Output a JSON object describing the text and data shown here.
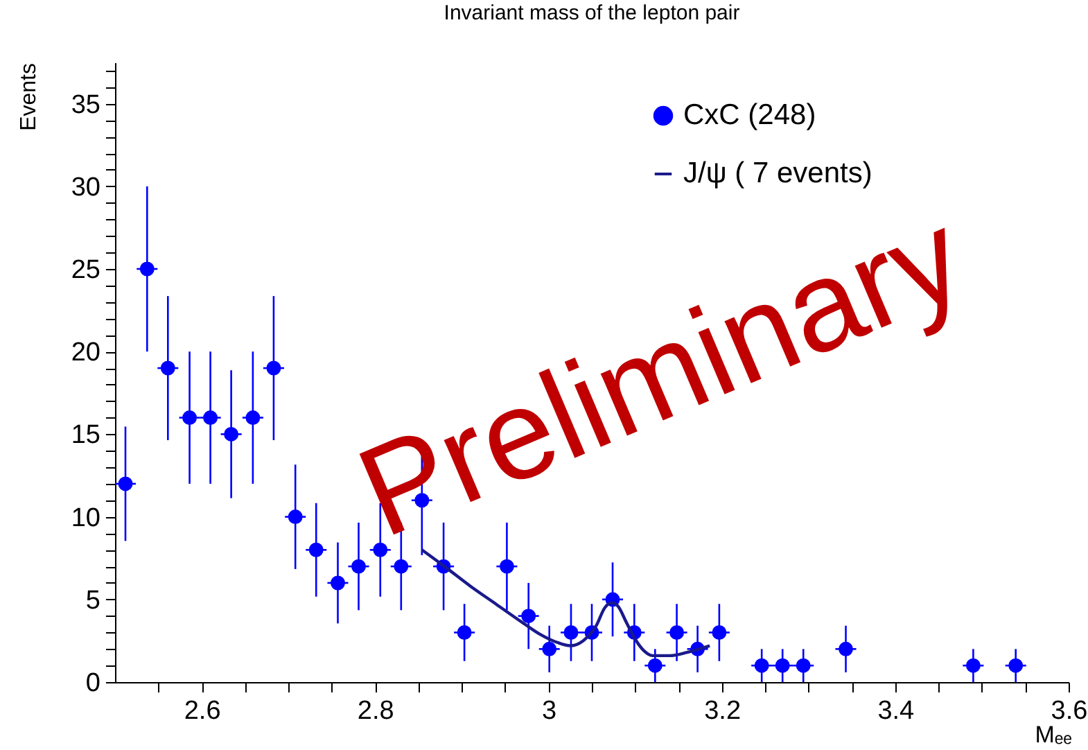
{
  "chart_data": {
    "type": "scatter",
    "title": "Invariant mass of the lepton pair",
    "xlabel": "Mₑₑ",
    "ylabel": "Events",
    "xlim": [
      2.5,
      3.6
    ],
    "xticks": [
      {
        "value": 2.55,
        "label": null
      },
      2.6,
      {
        "value": 2.65,
        "label": null
      },
      {
        "value": 2.7,
        "label": null
      },
      {
        "value": 2.75,
        "label": null
      },
      2.8,
      {
        "value": 2.85,
        "label": null
      },
      {
        "value": 2.9,
        "label": null
      },
      {
        "value": 2.95,
        "label": null
      },
      3,
      {
        "value": 3.05,
        "label": null
      },
      {
        "value": 3.1,
        "label": null
      },
      {
        "value": 3.15,
        "label": null
      },
      3.2,
      {
        "value": 3.25,
        "label": null
      },
      {
        "value": 3.3,
        "label": null
      },
      {
        "value": 3.35,
        "label": null
      },
      3.4,
      {
        "value": 3.45,
        "label": null
      },
      {
        "value": 3.5,
        "label": null
      },
      {
        "value": 3.55,
        "label": null
      },
      3.6
    ],
    "ylim": [
      0,
      37.5
    ],
    "yticks": [
      0,
      {
        "value": 1,
        "label": null
      },
      {
        "value": 2,
        "label": null
      },
      {
        "value": 3,
        "label": null
      },
      {
        "value": 4,
        "label": null
      },
      5,
      {
        "value": 6,
        "label": null
      },
      {
        "value": 7,
        "label": null
      },
      {
        "value": 8,
        "label": null
      },
      {
        "value": 9,
        "label": null
      },
      10,
      {
        "value": 11,
        "label": null
      },
      {
        "value": 12,
        "label": null
      },
      {
        "value": 13,
        "label": null
      },
      {
        "value": 14,
        "label": null
      },
      15,
      {
        "value": 16,
        "label": null
      },
      {
        "value": 17,
        "label": null
      },
      {
        "value": 18,
        "label": null
      },
      {
        "value": 19,
        "label": null
      },
      20,
      {
        "value": 21,
        "label": null
      },
      {
        "value": 22,
        "label": null
      },
      {
        "value": 23,
        "label": null
      },
      {
        "value": 24,
        "label": null
      },
      25,
      {
        "value": 26,
        "label": null
      },
      {
        "value": 27,
        "label": null
      },
      {
        "value": 28,
        "label": null
      },
      {
        "value": 29,
        "label": null
      },
      30,
      {
        "value": 31,
        "label": null
      },
      {
        "value": 32,
        "label": null
      },
      {
        "value": 33,
        "label": null
      },
      {
        "value": 34,
        "label": null
      },
      35,
      {
        "value": 36,
        "label": null
      },
      {
        "value": 37,
        "label": null
      }
    ],
    "legend": "top right",
    "annotations": [
      "Preliminary"
    ],
    "series": [
      {
        "name": "CxC (248)",
        "type": "scatter",
        "marker": "circle",
        "color": "#0000ff",
        "x": [
          2.512,
          2.537,
          2.561,
          2.586,
          2.61,
          2.634,
          2.659,
          2.683,
          2.708,
          2.732,
          2.757,
          2.781,
          2.806,
          2.83,
          2.854,
          2.879,
          2.903,
          2.952,
          2.977,
          3.001,
          3.026,
          3.05,
          3.074,
          3.099,
          3.123,
          3.148,
          3.172,
          3.197,
          3.246,
          3.27,
          3.294,
          3.343,
          3.49,
          3.539
        ],
        "values": [
          12,
          25,
          19,
          16,
          16,
          15,
          16,
          19,
          10,
          8,
          6,
          7,
          8,
          7,
          11,
          7,
          3,
          7,
          4,
          2,
          3,
          3,
          5,
          3,
          1,
          3,
          2,
          3,
          1,
          1,
          1,
          2,
          1,
          1
        ],
        "errors": [
          3.46,
          5,
          4.36,
          4,
          4,
          3.87,
          4,
          4.36,
          3.16,
          2.83,
          2.45,
          2.65,
          2.83,
          2.65,
          3.32,
          2.65,
          1.73,
          2.65,
          2,
          1.41,
          1.73,
          1.73,
          2.24,
          1.73,
          1,
          1.73,
          1.41,
          1.73,
          1,
          1,
          1,
          1.41,
          1,
          1
        ],
        "xerrors": [
          0.012,
          0.012,
          0.012,
          0.012,
          0.012,
          0.012,
          0.012,
          0.012,
          0.012,
          0.012,
          0.012,
          0.012,
          0.012,
          0.012,
          0.012,
          0.012,
          0.012,
          0.012,
          0.012,
          0.012,
          0.012,
          0.012,
          0.012,
          0.012,
          0.012,
          0.012,
          0.012,
          0.012,
          0.012,
          0.012,
          0.012,
          0.012,
          0.012,
          0.012
        ]
      },
      {
        "name": "J/ψ ( 7 events)",
        "type": "line",
        "marker": "none",
        "color": "#1a1a8c",
        "x": [
          2.854,
          2.88,
          2.91,
          2.94,
          2.97,
          2.99,
          3.01,
          3.025,
          3.04,
          3.055,
          3.065,
          3.073,
          3.08,
          3.09,
          3.1,
          3.11,
          3.12,
          3.14,
          3.16,
          3.186
        ],
        "values": [
          8.0,
          7.0,
          5.8,
          4.7,
          3.6,
          2.9,
          2.4,
          2.2,
          2.5,
          3.4,
          4.5,
          4.8,
          4.6,
          3.6,
          2.6,
          1.9,
          1.6,
          1.6,
          1.8,
          2.2
        ]
      }
    ]
  }
}
